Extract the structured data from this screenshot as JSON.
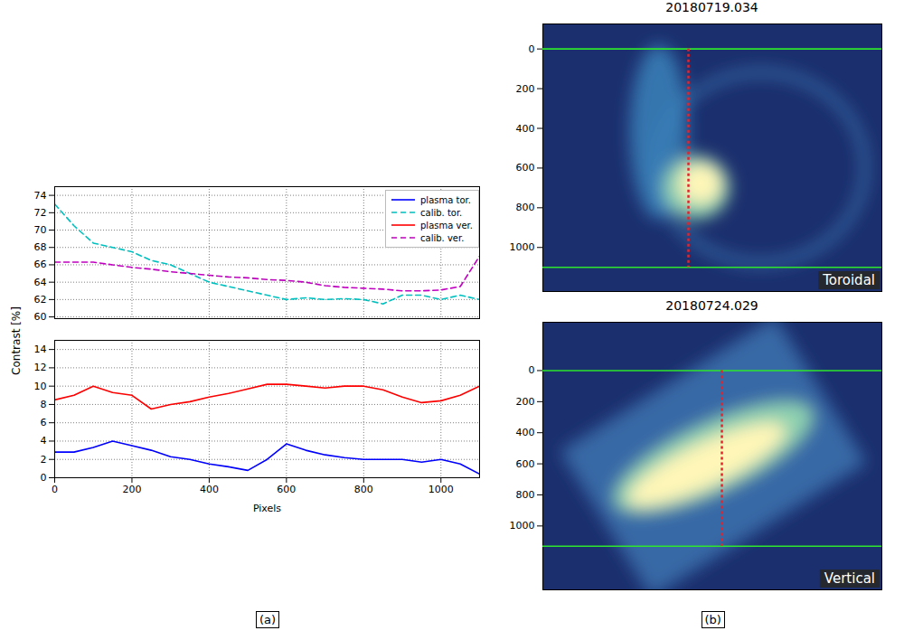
{
  "chart_data": [
    {
      "type": "line",
      "panel_label": "(a)",
      "ylabel": "Contrast [%]",
      "xlabel": "Pixels",
      "xlim": [
        0,
        1100
      ],
      "xticks": [
        0,
        200,
        400,
        600,
        800,
        1000
      ],
      "grid": true,
      "legend": "upper right",
      "subplots": [
        {
          "ylim": [
            59.8,
            75
          ],
          "yticks": [
            60,
            62,
            64,
            66,
            68,
            70,
            72,
            74
          ]
        },
        {
          "ylim": [
            0,
            15
          ],
          "yticks": [
            0,
            2,
            4,
            6,
            8,
            10,
            12,
            14
          ]
        }
      ],
      "x": [
        0,
        50,
        100,
        150,
        200,
        250,
        300,
        350,
        400,
        450,
        500,
        550,
        600,
        650,
        700,
        750,
        800,
        850,
        900,
        950,
        1000,
        1050,
        1100
      ],
      "series": [
        {
          "name": "plasma tor.",
          "color": "#0000ff",
          "line_style": "solid",
          "subplot": 1,
          "values": [
            2.8,
            2.8,
            3.3,
            4.0,
            3.5,
            3.0,
            2.3,
            2.0,
            1.5,
            1.2,
            0.8,
            2.0,
            3.7,
            3.0,
            2.5,
            2.2,
            2.0,
            2.0,
            2.0,
            1.7,
            2.0,
            1.5,
            0.4
          ]
        },
        {
          "name": "calib. tor.",
          "color": "#00bfbf",
          "line_style": "dashed",
          "subplot": 0,
          "values": [
            73.0,
            70.5,
            68.5,
            68.0,
            67.5,
            66.5,
            66.0,
            65.0,
            64.0,
            63.5,
            63.0,
            62.5,
            62.0,
            62.2,
            62.0,
            62.1,
            62.0,
            61.5,
            62.5,
            62.5,
            62.0,
            62.5,
            62.0
          ]
        },
        {
          "name": "plasma ver.",
          "color": "#ff0000",
          "line_style": "solid",
          "subplot": 1,
          "values": [
            8.5,
            9.0,
            10.0,
            9.3,
            9.0,
            7.5,
            8.0,
            8.3,
            8.8,
            9.2,
            9.7,
            10.2,
            10.2,
            10.0,
            9.8,
            10.0,
            10.0,
            9.6,
            8.8,
            8.2,
            8.4,
            9.0,
            10.0
          ]
        },
        {
          "name": "calib. ver.",
          "color": "#bf00bf",
          "line_style": "dashed",
          "subplot": 0,
          "values": [
            66.3,
            66.3,
            66.3,
            66.0,
            65.7,
            65.5,
            65.2,
            65.0,
            64.8,
            64.6,
            64.5,
            64.3,
            64.2,
            64.0,
            63.6,
            63.4,
            63.3,
            63.2,
            63.0,
            63.0,
            63.1,
            63.5,
            67.0
          ]
        }
      ]
    },
    {
      "type": "image",
      "panel_label": "(b)",
      "images": [
        {
          "title": "20180719.034",
          "caption": "Toroidal",
          "xlim": [
            0,
            1630
          ],
          "ylim": [
            -126,
            1222
          ],
          "yticks": [
            0,
            200,
            400,
            600,
            800,
            1000
          ],
          "hlines": [
            0,
            1100
          ],
          "vline": 700
        },
        {
          "title": "20180724.029",
          "caption": "Vertical",
          "xlim": [
            0,
            2083
          ],
          "ylim": [
            -311,
            1411
          ],
          "yticks": [
            0,
            200,
            400,
            600,
            800,
            1000
          ],
          "hlines": [
            0,
            1130
          ],
          "vline": 1100
        }
      ]
    }
  ]
}
